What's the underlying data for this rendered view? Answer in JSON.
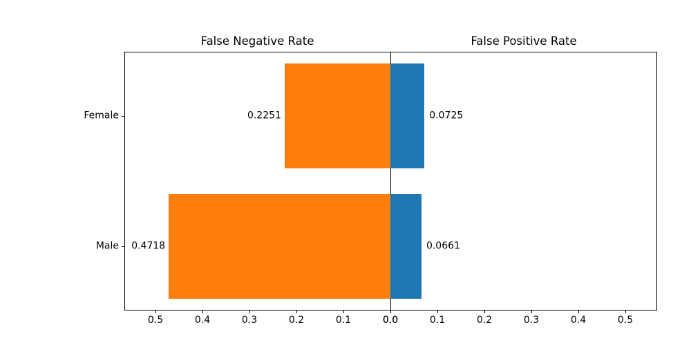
{
  "chart_data": {
    "type": "bar",
    "variant": "diverging-horizontal",
    "categories": [
      "Female",
      "Male"
    ],
    "series": [
      {
        "name": "False Negative Rate",
        "side": "left",
        "color": "#ff7f0e",
        "values": [
          0.2251,
          0.4718
        ],
        "labels": [
          "0.2251",
          "0.4718"
        ]
      },
      {
        "name": "False Positive Rate",
        "side": "right",
        "color": "#1f77b4",
        "values": [
          0.0725,
          0.0661
        ],
        "labels": [
          "0.0725",
          "0.0661"
        ]
      }
    ],
    "titles": {
      "left": "False Negative Rate",
      "right": "False Positive Rate"
    },
    "x_axis": {
      "tick_labels_left": [
        "0.5",
        "0.4",
        "0.3",
        "0.2",
        "0.1",
        "0.0"
      ],
      "tick_labels_right": [
        "0.0",
        "0.1",
        "0.2",
        "0.3",
        "0.4",
        "0.5"
      ],
      "xlim": [
        0,
        0.567
      ],
      "tick_step": 0.1,
      "grid": false
    },
    "colors": {
      "fnr_bar": "#ff7f0e",
      "fpr_bar": "#1f77b4",
      "axis": "#000000",
      "background": "#ffffff",
      "text": "#000000"
    }
  }
}
